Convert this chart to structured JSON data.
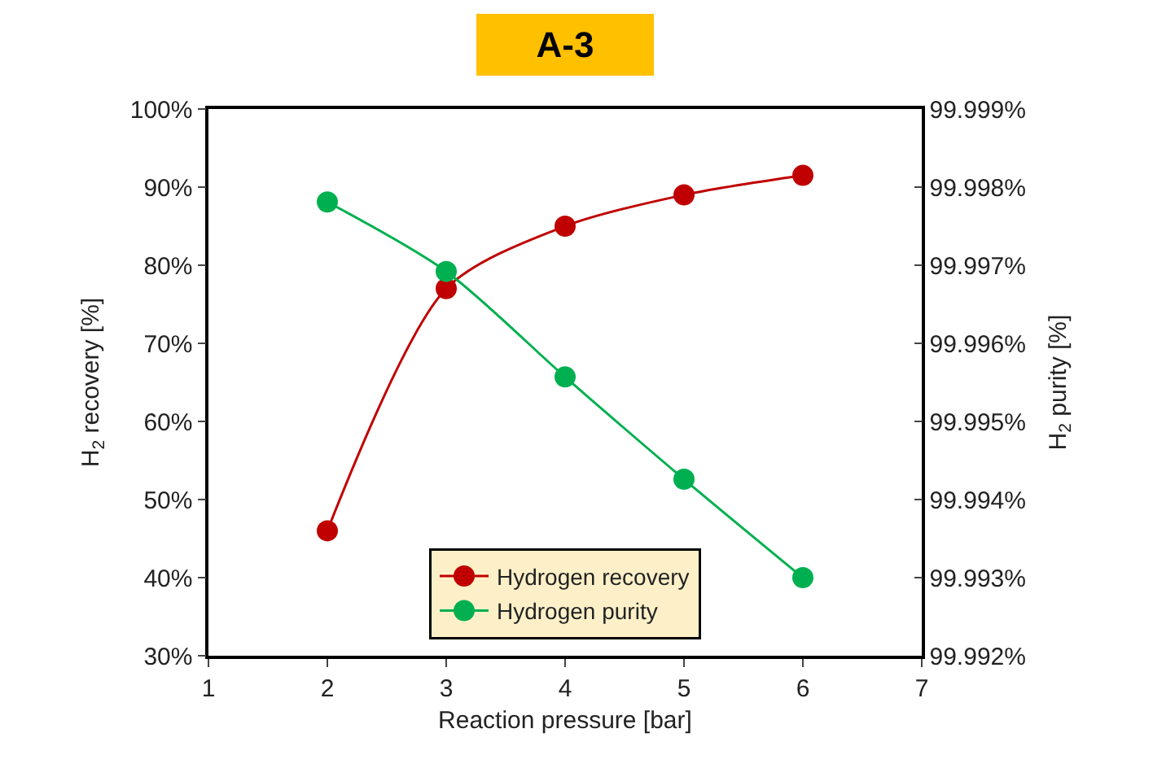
{
  "chart_data": {
    "type": "line",
    "title": "A-3",
    "xlabel": "Reaction pressure [bar]",
    "ylabel": "H$_{2}$ recovery [%]",
    "y2label": "H$_{2}$ purity [%]",
    "x": [
      2,
      3,
      4,
      5,
      6
    ],
    "series": [
      {
        "name": "Hydrogen recovery",
        "color": "#c00000",
        "values": [
          46,
          77,
          85,
          89,
          91.5
        ]
      },
      {
        "name": "Hydrogen purity",
        "color": "#00b050",
        "axis": "y2",
        "values": [
          99.99781,
          99.99692,
          99.99557,
          99.99426,
          99.993
        ]
      }
    ],
    "xlim": [
      1,
      7
    ],
    "xticks": [
      1,
      2,
      3,
      4,
      5,
      6,
      7
    ],
    "ylim": [
      30,
      100
    ],
    "yticks": [
      {
        "value": 30,
        "label": "30%"
      },
      {
        "value": 40,
        "label": "40%"
      },
      {
        "value": 50,
        "label": "50%"
      },
      {
        "value": 60,
        "label": "60%"
      },
      {
        "value": 70,
        "label": "70%"
      },
      {
        "value": 80,
        "label": "80%"
      },
      {
        "value": 90,
        "label": "90%"
      },
      {
        "value": 100,
        "label": "100%"
      }
    ],
    "y2lim": [
      99.992,
      99.999
    ],
    "y2ticks": [
      {
        "value": 99.992,
        "label": "99.992%"
      },
      {
        "value": 99.993,
        "label": "99.993%"
      },
      {
        "value": 99.994,
        "label": "99.994%"
      },
      {
        "value": 99.995,
        "label": "99.995%"
      },
      {
        "value": 99.996,
        "label": "99.996%"
      },
      {
        "value": 99.997,
        "label": "99.997%"
      },
      {
        "value": 99.998,
        "label": "99.998%"
      },
      {
        "value": 99.999,
        "label": "99.999%"
      }
    ],
    "grid": false,
    "legend": "bottom",
    "marker": "circle",
    "line_style": "solid"
  }
}
